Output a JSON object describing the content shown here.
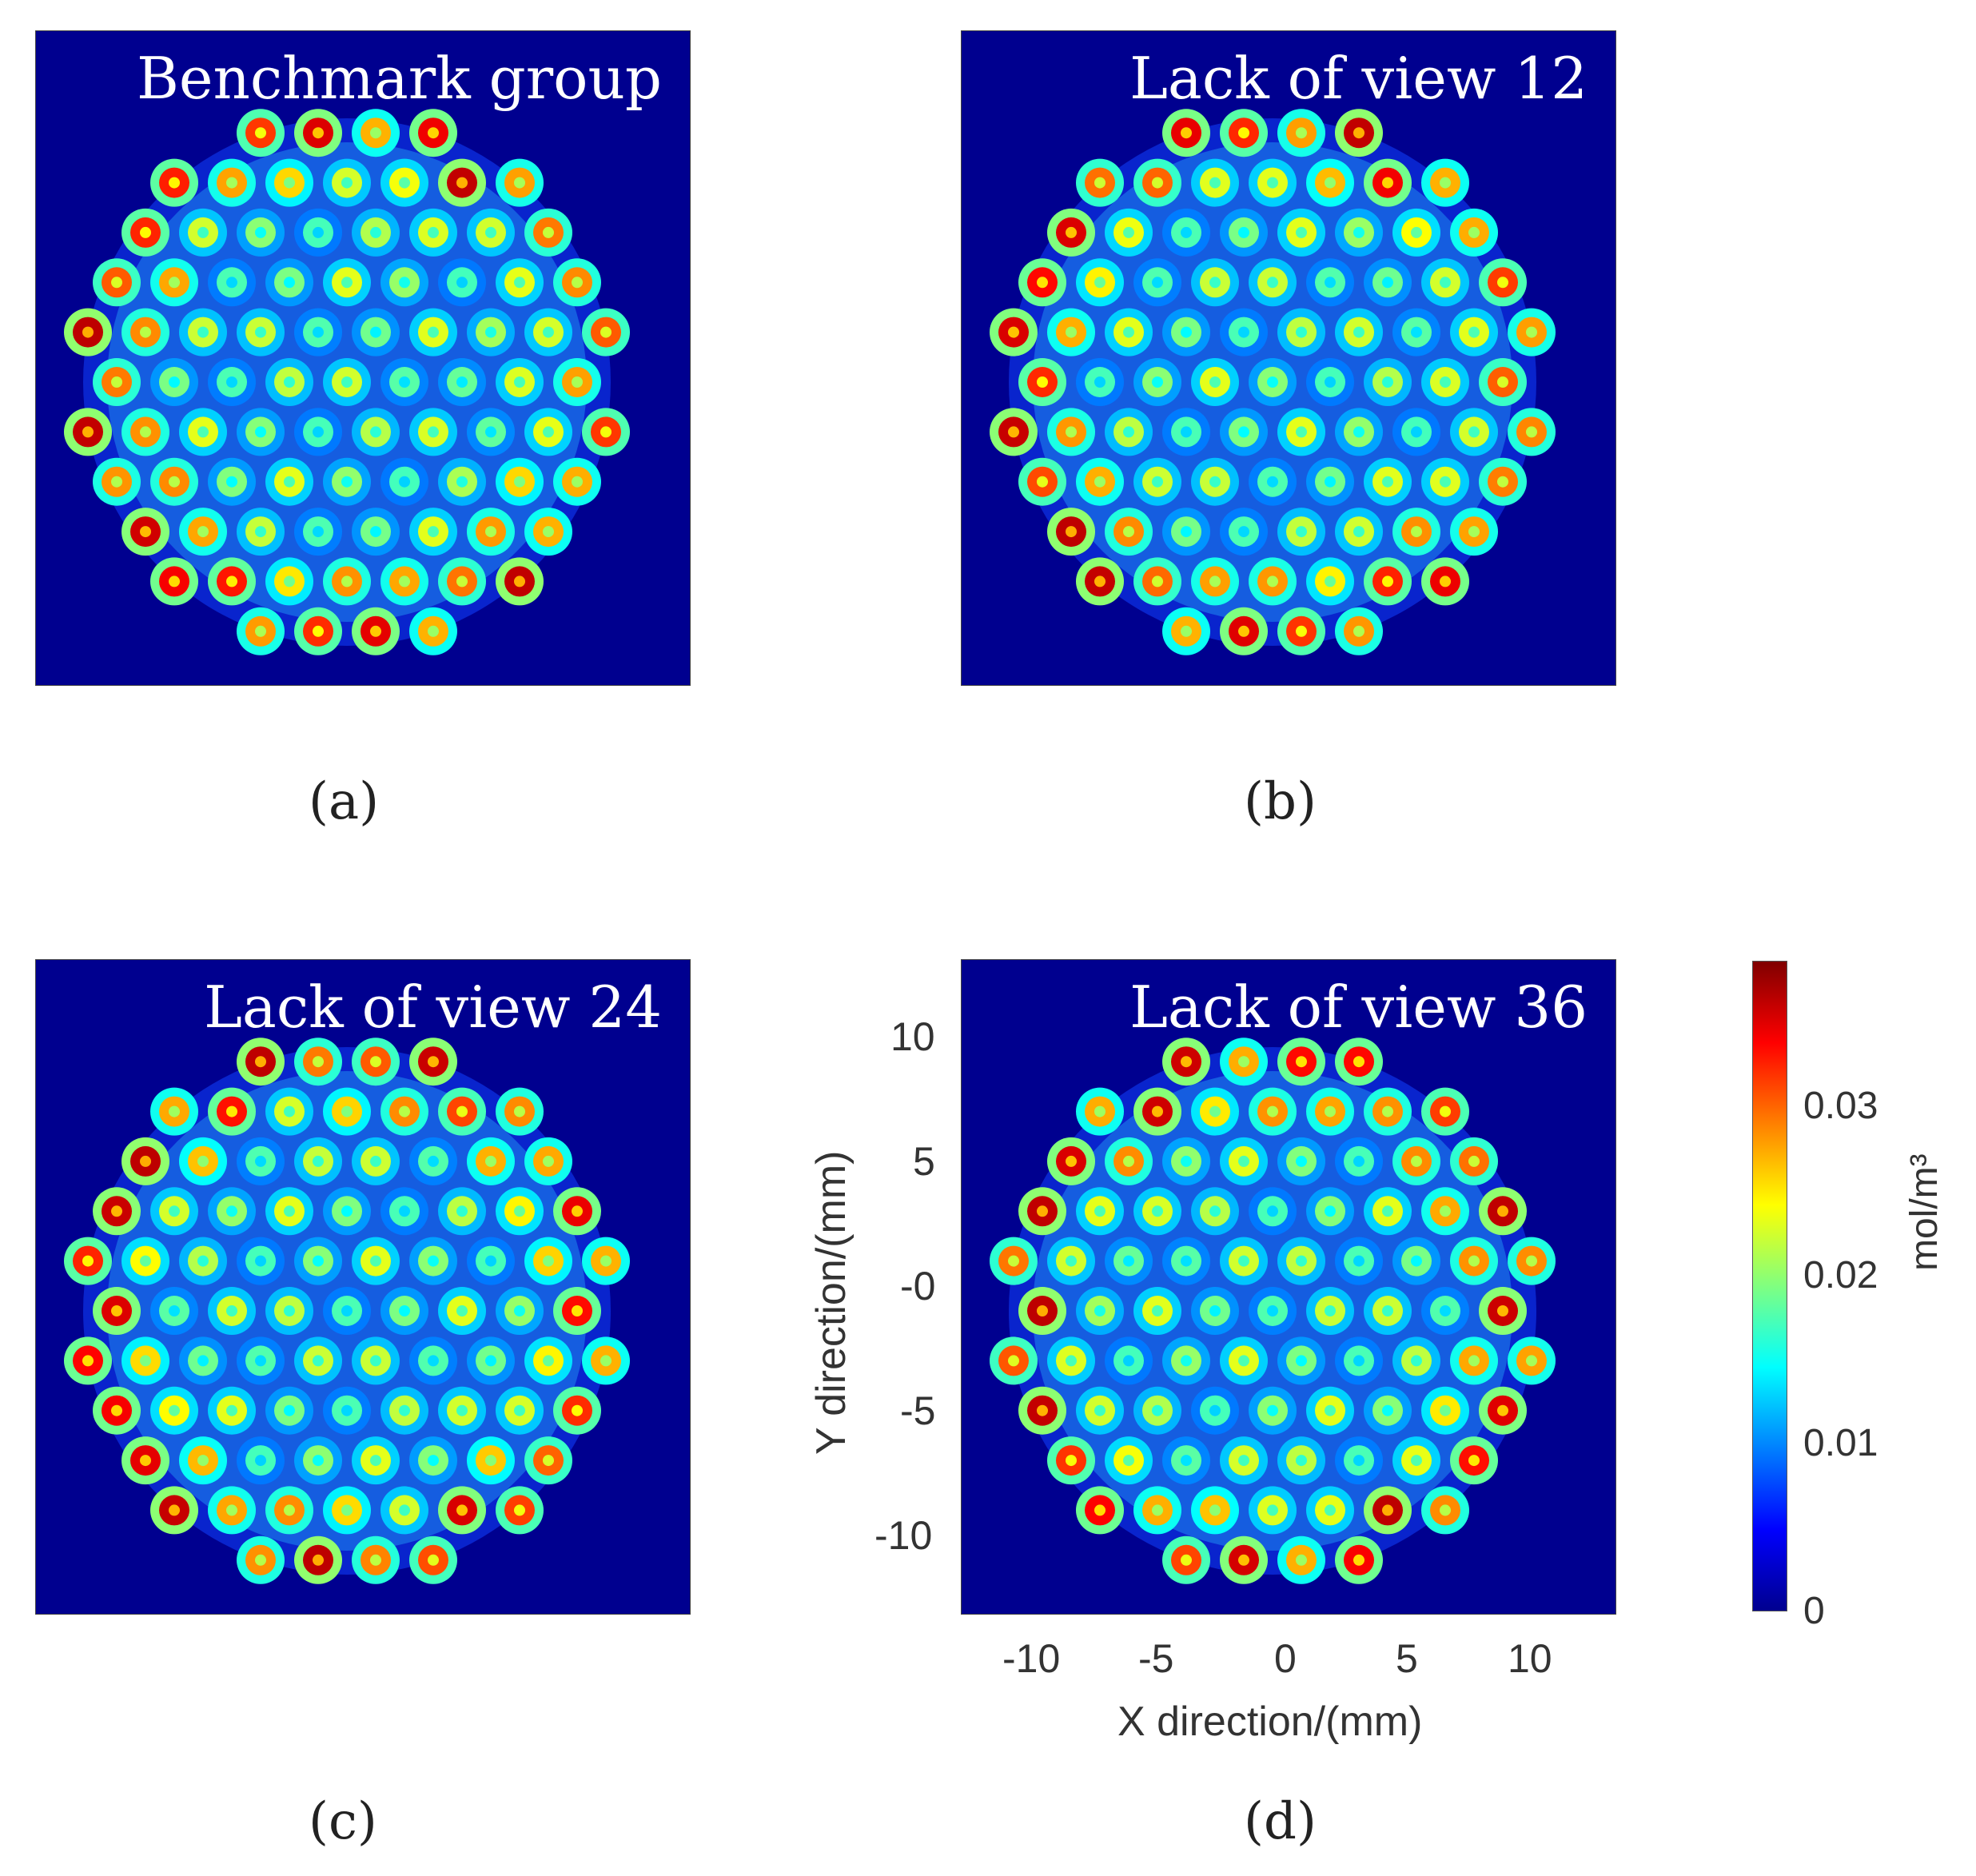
{
  "figure": {
    "panels": [
      {
        "id": "a",
        "title": "Benchmark group",
        "sublabel": "(a)"
      },
      {
        "id": "b",
        "title": "Lack of view 12",
        "sublabel": "(b)"
      },
      {
        "id": "c",
        "title": "Lack of view 24",
        "sublabel": "(c)"
      },
      {
        "id": "d",
        "title": "Lack of view 36",
        "sublabel": "(d)"
      }
    ],
    "colorbar": {
      "unit": "mol/m³",
      "ticks": [
        "0",
        "0.01",
        "0.02",
        "0.03"
      ],
      "colormap": "jet",
      "range": [
        0,
        0.038
      ]
    }
  },
  "chart_data": [
    {
      "type": "heatmap",
      "title": "Benchmark group",
      "xlim": [
        -13,
        13
      ],
      "ylim": [
        -13,
        13
      ],
      "colormap": "jet",
      "zlim": [
        0,
        0.038
      ]
    },
    {
      "type": "heatmap",
      "title": "Lack of view 12",
      "xlim": [
        -13,
        13
      ],
      "ylim": [
        -13,
        13
      ],
      "colormap": "jet",
      "zlim": [
        0,
        0.038
      ]
    },
    {
      "type": "heatmap",
      "title": "Lack of view 24",
      "xlim": [
        -13,
        13
      ],
      "ylim": [
        -13,
        13
      ],
      "colormap": "jet",
      "zlim": [
        0,
        0.038
      ]
    },
    {
      "type": "heatmap",
      "title": "Lack of view 36",
      "xlabel": "X direction/(mm)",
      "ylabel": "Y direction/(mm)",
      "xticks": [
        "-10",
        "-5",
        "0",
        "5",
        "10"
      ],
      "yticks": [
        "10",
        "5",
        "-0",
        "-5",
        "-10"
      ],
      "xlim": [
        -13,
        13
      ],
      "ylim": [
        -13,
        13
      ],
      "colormap": "jet",
      "zlim": [
        0,
        0.038
      ]
    }
  ]
}
